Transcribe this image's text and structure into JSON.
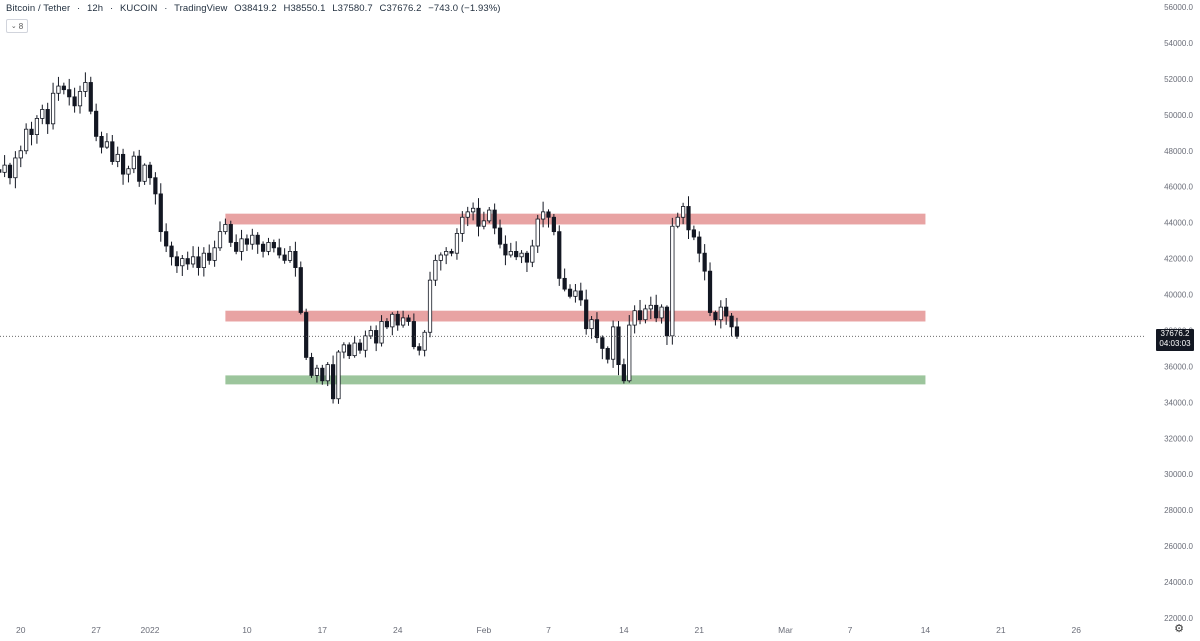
{
  "header": {
    "symbol": "Bitcoin / Tether",
    "interval": "12h",
    "exchange": "KUCOIN",
    "source": "TradingView",
    "open": "O38419.2",
    "high": "H38550.1",
    "low": "L37580.7",
    "close": "C37676.2",
    "change": "−743.0 (−1.93%)",
    "vol_badge": "8"
  },
  "price_tag": {
    "price": "37676.2",
    "countdown": "04:03:03"
  },
  "colors": {
    "up": "#131722",
    "down": "#131722",
    "resistance_zone": "#e8a3a3",
    "support_zone": "#9cc59c",
    "last_price_line": "#555555",
    "axis_text": "#6a6d78"
  },
  "icons": {
    "settings": "gear-icon"
  },
  "chart_data": {
    "type": "candlestick",
    "ylim": [
      22000,
      56000
    ],
    "y_ticks": [
      "56000.0",
      "54000.0",
      "52000.0",
      "50000.0",
      "48000.0",
      "46000.0",
      "44000.0",
      "42000.0",
      "40000.0",
      "38000.0",
      "36000.0",
      "34000.0",
      "32000.0",
      "30000.0",
      "28000.0",
      "26000.0",
      "24000.0",
      "22000.0"
    ],
    "x_tick_labels": [
      "20",
      "27",
      "2022",
      "10",
      "17",
      "24",
      "Feb",
      "7",
      "14",
      "21",
      "Mar",
      "7",
      "14",
      "21",
      "26"
    ],
    "x_tick_days": [
      -12,
      -5,
      0,
      9,
      16,
      23,
      31,
      37,
      44,
      51,
      59,
      65,
      72,
      79,
      86
    ],
    "last_price": 37676.2,
    "zones": [
      {
        "kind": "resistance",
        "from_day": 7,
        "to_day": 72,
        "low": 43900,
        "high": 44500
      },
      {
        "kind": "resistance",
        "from_day": 7,
        "to_day": 72,
        "low": 38500,
        "high": 39100
      },
      {
        "kind": "support",
        "from_day": 7,
        "to_day": 72,
        "low": 35000,
        "high": 35500
      }
    ],
    "closes": [
      46800,
      47200,
      46500,
      47600,
      48000,
      49200,
      48900,
      49800,
      50300,
      49500,
      51200,
      51600,
      51400,
      51000,
      50500,
      51300,
      51800,
      50200,
      48800,
      48200,
      48500,
      47400,
      47800,
      46700,
      47000,
      47700,
      46300,
      47200,
      46500,
      45600,
      43500,
      42700,
      42100,
      41600,
      42000,
      41700,
      42100,
      41500,
      42300,
      41900,
      42600,
      43500,
      43900,
      42900,
      42400,
      43100,
      42800,
      43300,
      42800,
      42400,
      42900,
      42600,
      42200,
      41900,
      42400,
      41500,
      39000,
      36500,
      35500,
      35900,
      35200,
      36100,
      34200,
      36800,
      37200,
      36600,
      37300,
      36900,
      37700,
      38000,
      37300,
      38500,
      38200,
      38900,
      38300,
      38700,
      38500,
      37100,
      36900,
      37900,
      40800,
      41900,
      42200,
      42400,
      42300,
      43400,
      44300,
      44600,
      44800,
      43800,
      44100,
      44700,
      43700,
      42800,
      42200,
      42400,
      42100,
      42300,
      41800,
      42700,
      44200,
      44600,
      44300,
      43500,
      40900,
      40300,
      39900,
      40200,
      39700,
      38100,
      38600,
      37600,
      37000,
      36400,
      38200,
      36100,
      35200,
      38300,
      39100,
      38600,
      39200,
      39400,
      38700,
      39300,
      37700,
      43800,
      44300,
      44900,
      43600,
      43200,
      42300,
      41300,
      39000,
      38600,
      39300,
      38800,
      38200,
      37676
    ]
  }
}
